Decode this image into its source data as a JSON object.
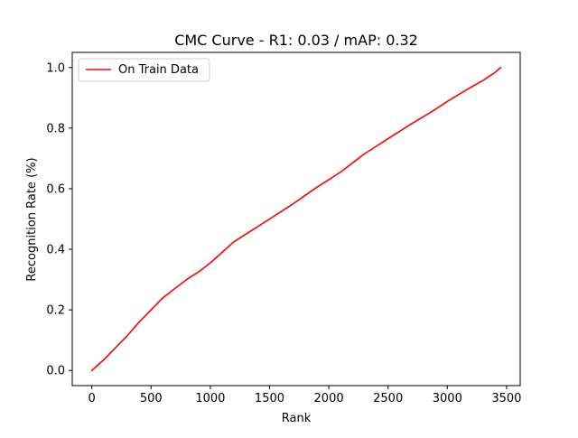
{
  "chart_data": {
    "type": "line",
    "title": "CMC Curve - R1: 0.03 / mAP: 0.32",
    "xlabel": "Rank",
    "ylabel": "Recognition Rate (%)",
    "xlim": [
      -165,
      3615
    ],
    "ylim": [
      -0.05,
      1.05
    ],
    "xticks": [
      0,
      500,
      1000,
      1500,
      2000,
      2500,
      3000,
      3500
    ],
    "xtick_labels": [
      "0",
      "500",
      "1000",
      "1500",
      "2000",
      "2500",
      "3000",
      "3500"
    ],
    "yticks": [
      0.0,
      0.2,
      0.4,
      0.6,
      0.8,
      1.0
    ],
    "ytick_labels": [
      "0.0",
      "0.2",
      "0.4",
      "0.6",
      "0.8",
      "1.0"
    ],
    "grid": false,
    "legend_position": "upper-left",
    "series": [
      {
        "name": "On Train Data",
        "color": "#ff0000",
        "x": [
          0,
          100,
          200,
          300,
          400,
          500,
          600,
          700,
          800,
          900,
          1000,
          1100,
          1200,
          1300,
          1400,
          1500,
          1600,
          1700,
          1800,
          1900,
          2000,
          2100,
          2200,
          2300,
          2400,
          2500,
          2600,
          2700,
          2800,
          2900,
          3000,
          3100,
          3200,
          3300,
          3400,
          3450
        ],
        "y": [
          0.0,
          0.035,
          0.075,
          0.115,
          0.16,
          0.2,
          0.24,
          0.27,
          0.3,
          0.325,
          0.355,
          0.39,
          0.425,
          0.45,
          0.475,
          0.5,
          0.525,
          0.55,
          0.578,
          0.605,
          0.63,
          0.655,
          0.685,
          0.715,
          0.74,
          0.765,
          0.79,
          0.815,
          0.838,
          0.862,
          0.888,
          0.912,
          0.935,
          0.957,
          0.983,
          1.0
        ]
      }
    ]
  }
}
